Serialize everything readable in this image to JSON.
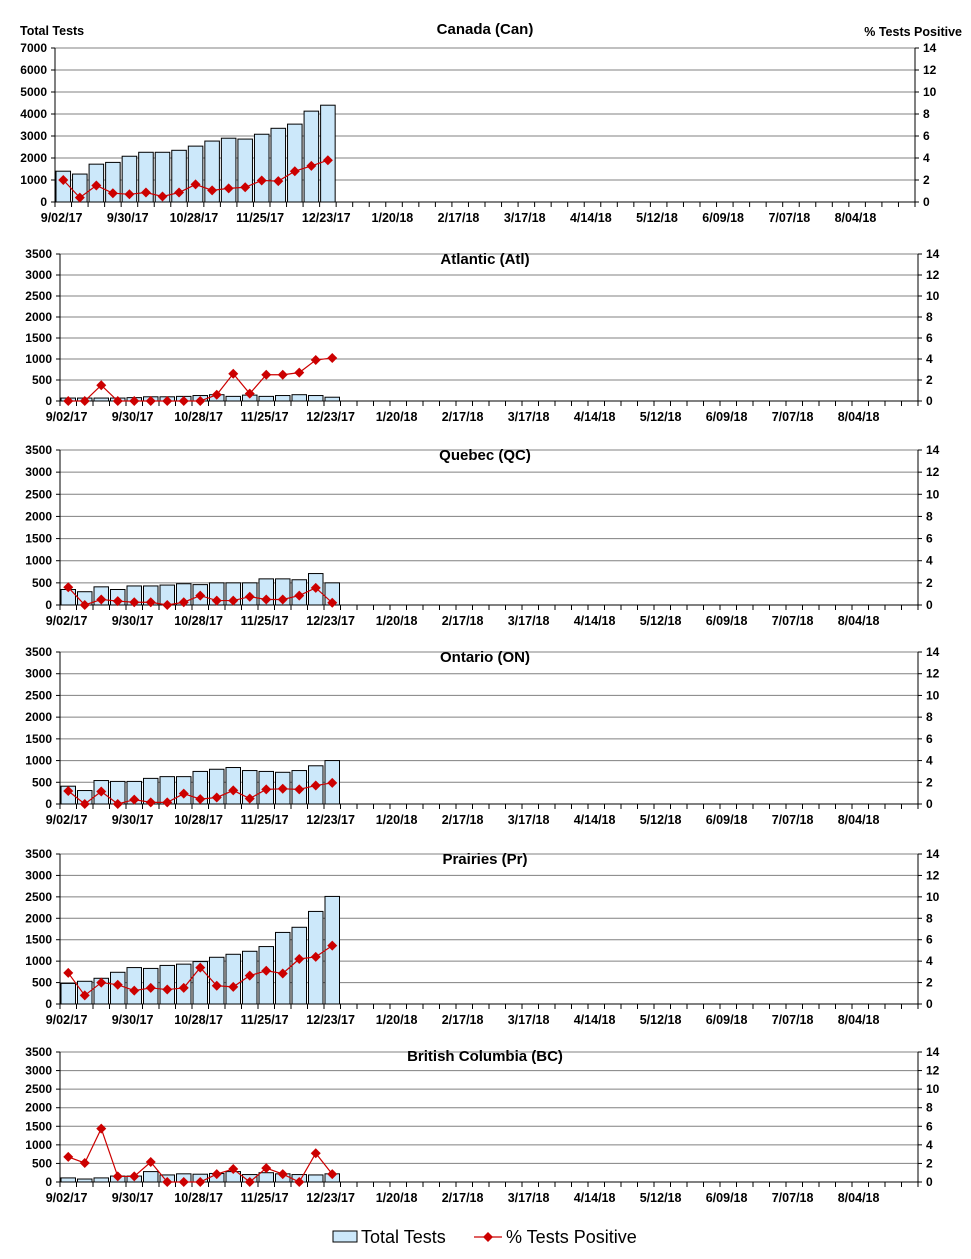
{
  "chart_data": [
    {
      "type": "bar+line",
      "title": "Canada (Can)",
      "ylabel": "Total Tests",
      "y2label": "% Tests Positive",
      "ylim": [
        0,
        7000
      ],
      "y2lim": [
        0,
        14
      ],
      "categories": [
        "9/02/17",
        "9/09/17",
        "9/16/17",
        "9/23/17",
        "9/30/17",
        "10/07/17",
        "10/14/17",
        "10/21/17",
        "10/28/17",
        "11/04/17",
        "11/11/17",
        "11/18/17",
        "11/25/17",
        "12/02/17",
        "12/09/17",
        "12/16/17",
        "12/23/17"
      ],
      "series": [
        {
          "name": "Total Tests",
          "axis": "left",
          "values": [
            1400,
            1270,
            1720,
            1800,
            2080,
            2260,
            2260,
            2350,
            2540,
            2770,
            2900,
            2860,
            3080,
            3350,
            3540,
            4130,
            4400
          ]
        },
        {
          "name": "% Tests Positive",
          "axis": "right",
          "values": [
            2.0,
            0.4,
            1.5,
            0.8,
            0.7,
            0.86,
            0.5,
            0.86,
            1.6,
            1.06,
            1.24,
            1.34,
            1.96,
            1.9,
            2.8,
            3.28,
            3.8
          ]
        }
      ]
    },
    {
      "type": "bar+line",
      "title": "Atlantic (Atl)",
      "ylim": [
        0,
        3500
      ],
      "y2lim": [
        0,
        14
      ],
      "series": [
        {
          "name": "Total Tests",
          "axis": "left",
          "values": [
            70,
            70,
            70,
            70,
            80,
            100,
            100,
            110,
            130,
            150,
            110,
            140,
            110,
            130,
            150,
            130,
            90
          ]
        },
        {
          "name": "% Tests Positive",
          "axis": "right",
          "values": [
            0,
            0,
            1.5,
            0,
            0,
            0,
            0,
            0,
            0,
            0.6,
            2.6,
            0.7,
            2.5,
            2.5,
            2.7,
            3.9,
            4.1
          ]
        }
      ]
    },
    {
      "type": "bar+line",
      "title": "Quebec (QC)",
      "ylim": [
        0,
        3500
      ],
      "y2lim": [
        0,
        14
      ],
      "series": [
        {
          "name": "Total Tests",
          "axis": "left",
          "values": [
            350,
            300,
            410,
            350,
            430,
            430,
            450,
            480,
            460,
            500,
            500,
            500,
            590,
            590,
            570,
            710,
            500
          ]
        },
        {
          "name": "% Tests Positive",
          "axis": "right",
          "values": [
            1.6,
            0,
            0.5,
            0.35,
            0.25,
            0.25,
            0,
            0.25,
            0.85,
            0.4,
            0.4,
            0.75,
            0.5,
            0.5,
            0.85,
            1.55,
            0.2
          ]
        }
      ]
    },
    {
      "type": "bar+line",
      "title": "Ontario (ON)",
      "ylim": [
        0,
        3500
      ],
      "y2lim": [
        0,
        14
      ],
      "series": [
        {
          "name": "Total Tests",
          "axis": "left",
          "values": [
            410,
            310,
            540,
            520,
            520,
            590,
            630,
            630,
            750,
            800,
            840,
            770,
            750,
            730,
            770,
            880,
            1000
          ]
        },
        {
          "name": "% Tests Positive",
          "axis": "right",
          "values": [
            1.2,
            0,
            1.15,
            0,
            0.4,
            0.15,
            0.15,
            0.95,
            0.45,
            0.6,
            1.25,
            0.5,
            1.35,
            1.4,
            1.35,
            1.7,
            1.95
          ]
        }
      ]
    },
    {
      "type": "bar+line",
      "title": "Prairies (Pr)",
      "ylim": [
        0,
        3500
      ],
      "y2lim": [
        0,
        14
      ],
      "series": [
        {
          "name": "Total Tests",
          "axis": "left",
          "values": [
            480,
            530,
            600,
            740,
            850,
            830,
            900,
            930,
            990,
            1090,
            1160,
            1230,
            1340,
            1670,
            1790,
            2160,
            2510
          ]
        },
        {
          "name": "% Tests Positive",
          "axis": "right",
          "values": [
            2.9,
            0.8,
            2.0,
            1.8,
            1.25,
            1.5,
            1.35,
            1.5,
            3.4,
            1.7,
            1.6,
            2.65,
            3.1,
            2.85,
            4.2,
            4.4,
            5.45
          ]
        }
      ]
    },
    {
      "type": "bar+line",
      "title": "British Columbia (BC)",
      "ylim": [
        0,
        3500
      ],
      "y2lim": [
        0,
        14
      ],
      "series": [
        {
          "name": "Total Tests",
          "axis": "left",
          "values": [
            110,
            80,
            110,
            160,
            160,
            280,
            190,
            220,
            210,
            230,
            280,
            200,
            250,
            220,
            200,
            190,
            220
          ]
        },
        {
          "name": "% Tests Positive",
          "axis": "right",
          "values": [
            2.7,
            2.05,
            5.75,
            0.6,
            0.6,
            2.15,
            0,
            0,
            0,
            0.85,
            1.4,
            0,
            1.5,
            0.85,
            0,
            3.1,
            0.85
          ]
        }
      ]
    }
  ],
  "x_tick_labels": [
    "9/02/17",
    "9/30/17",
    "10/28/17",
    "11/25/17",
    "12/23/17",
    "1/20/18",
    "2/17/18",
    "3/17/18",
    "4/14/18",
    "5/12/18",
    "6/09/18",
    "7/07/18",
    "8/04/18"
  ],
  "x_weeks_total": 52,
  "legend": {
    "bars": "Total Tests",
    "line": "% Tests Positive",
    "position": "bottom"
  },
  "colors": {
    "bar_fill": "#cce8fa",
    "bar_stroke": "#000000",
    "line": "#cc0000",
    "grid": "#808080"
  }
}
